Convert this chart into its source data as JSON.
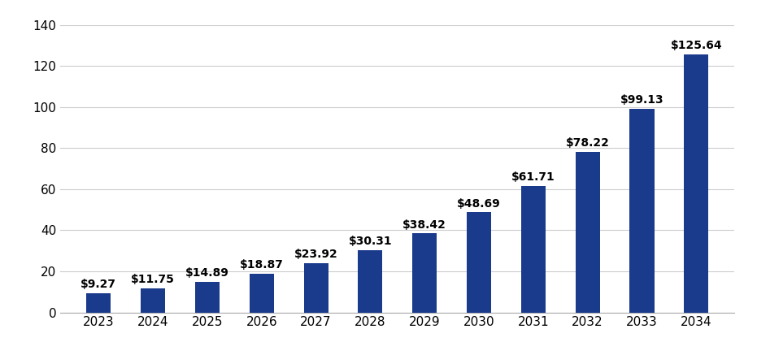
{
  "categories": [
    "2023",
    "2024",
    "2025",
    "2026",
    "2027",
    "2028",
    "2029",
    "2030",
    "2031",
    "2032",
    "2033",
    "2034"
  ],
  "values": [
    9.27,
    11.75,
    14.89,
    18.87,
    23.92,
    30.31,
    38.42,
    48.69,
    61.71,
    78.22,
    99.13,
    125.64
  ],
  "labels": [
    "$9.27",
    "$11.75",
    "$14.89",
    "$18.87",
    "$23.92",
    "$30.31",
    "$38.42",
    "$48.69",
    "$61.71",
    "$78.22",
    "$99.13",
    "$125.64"
  ],
  "bar_color": "#1a3a8c",
  "background_color": "#ffffff",
  "ylim": [
    0,
    140
  ],
  "yticks": [
    0,
    20,
    40,
    60,
    80,
    100,
    120,
    140
  ],
  "grid_color": "#cccccc",
  "label_fontsize": 10,
  "tick_fontsize": 11,
  "bar_width": 0.45
}
